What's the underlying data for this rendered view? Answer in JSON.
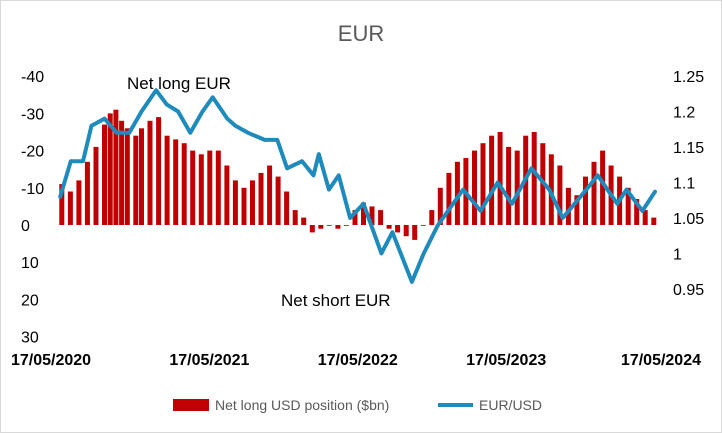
{
  "chart_data": {
    "type": "bar+line",
    "title": "EUR",
    "legend_position": "bottom",
    "grid": false,
    "left_axis": {
      "ticks": [
        -40,
        -30,
        -20,
        -10,
        0,
        10,
        20,
        30
      ],
      "tick_labels": [
        "-40",
        "-30",
        "-20",
        "-10",
        "0",
        "10",
        "20",
        "30"
      ],
      "range": [
        -40,
        30
      ],
      "inverted": true
    },
    "right_axis": {
      "ticks": [
        1.25,
        1.2,
        1.15,
        1.1,
        1.05,
        1,
        0.95
      ],
      "tick_labels": [
        "1.25",
        "1.2",
        "1.15",
        "1.1",
        "1.05",
        "1",
        "0.95"
      ],
      "range": [
        0.95,
        1.25
      ]
    },
    "x_ticks": [
      {
        "date": "2020-05-17",
        "label": "17/05/2020"
      },
      {
        "date": "2021-05-17",
        "label": "17/05/2021"
      },
      {
        "date": "2022-05-17",
        "label": "17/05/2022"
      },
      {
        "date": "2023-05-17",
        "label": "17/05/2023"
      },
      {
        "date": "2024-05-17",
        "label": "17/05/2024"
      }
    ],
    "annotations": {
      "net_long": "Net long EUR",
      "net_short": "Net short EUR"
    },
    "series": [
      {
        "name": "Net long USD position ($bn)",
        "type": "bar",
        "axis": "left",
        "color": "#c00000",
        "points": [
          [
            "2020-05-19",
            -11
          ],
          [
            "2020-06-09",
            -9
          ],
          [
            "2020-06-30",
            -12
          ],
          [
            "2020-07-21",
            -17
          ],
          [
            "2020-08-11",
            -21
          ],
          [
            "2020-09-01",
            -27
          ],
          [
            "2020-09-15",
            -30
          ],
          [
            "2020-09-29",
            -31
          ],
          [
            "2020-10-13",
            -28
          ],
          [
            "2020-10-27",
            -26
          ],
          [
            "2020-11-17",
            -24
          ],
          [
            "2020-12-01",
            -26
          ],
          [
            "2020-12-22",
            -28
          ],
          [
            "2021-01-12",
            -29
          ],
          [
            "2021-02-02",
            -24
          ],
          [
            "2021-02-23",
            -23
          ],
          [
            "2021-03-16",
            -22
          ],
          [
            "2021-04-06",
            -20
          ],
          [
            "2021-04-27",
            -19
          ],
          [
            "2021-05-18",
            -20
          ],
          [
            "2021-06-08",
            -20
          ],
          [
            "2021-06-29",
            -16
          ],
          [
            "2021-07-20",
            -12
          ],
          [
            "2021-08-10",
            -10
          ],
          [
            "2021-08-31",
            -12
          ],
          [
            "2021-09-21",
            -14
          ],
          [
            "2021-10-12",
            -16
          ],
          [
            "2021-11-02",
            -13
          ],
          [
            "2021-11-23",
            -9
          ],
          [
            "2021-12-14",
            -4
          ],
          [
            "2022-01-04",
            -2
          ],
          [
            "2022-01-25",
            2
          ],
          [
            "2022-02-15",
            1
          ],
          [
            "2022-03-08",
            0
          ],
          [
            "2022-03-29",
            1
          ],
          [
            "2022-04-19",
            0
          ],
          [
            "2022-05-10",
            -4
          ],
          [
            "2022-05-31",
            -6
          ],
          [
            "2022-06-21",
            -5
          ],
          [
            "2022-07-12",
            -4
          ],
          [
            "2022-08-02",
            1
          ],
          [
            "2022-08-23",
            2
          ],
          [
            "2022-09-13",
            3
          ],
          [
            "2022-10-04",
            4
          ],
          [
            "2022-10-25",
            0
          ],
          [
            "2022-11-15",
            -4
          ],
          [
            "2022-12-06",
            -10
          ],
          [
            "2022-12-27",
            -14
          ],
          [
            "2023-01-17",
            -17
          ],
          [
            "2023-02-07",
            -18
          ],
          [
            "2023-02-28",
            -20
          ],
          [
            "2023-03-21",
            -22
          ],
          [
            "2023-04-11",
            -24
          ],
          [
            "2023-05-02",
            -25
          ],
          [
            "2023-05-23",
            -21
          ],
          [
            "2023-06-13",
            -20
          ],
          [
            "2023-07-04",
            -24
          ],
          [
            "2023-07-25",
            -25
          ],
          [
            "2023-08-15",
            -22
          ],
          [
            "2023-09-05",
            -19
          ],
          [
            "2023-09-26",
            -16
          ],
          [
            "2023-10-17",
            -10
          ],
          [
            "2023-11-07",
            -8
          ],
          [
            "2023-11-28",
            -13
          ],
          [
            "2023-12-19",
            -17
          ],
          [
            "2024-01-09",
            -20
          ],
          [
            "2024-01-30",
            -16
          ],
          [
            "2024-02-20",
            -13
          ],
          [
            "2024-03-12",
            -10
          ],
          [
            "2024-04-02",
            -7
          ],
          [
            "2024-04-23",
            -4
          ],
          [
            "2024-05-14",
            -2
          ]
        ]
      },
      {
        "name": "EUR/USD",
        "type": "line",
        "axis": "right",
        "color": "#1f8bbd",
        "points": [
          [
            "2020-05-15",
            1.08
          ],
          [
            "2020-06-10",
            1.13
          ],
          [
            "2020-07-10",
            1.13
          ],
          [
            "2020-07-31",
            1.18
          ],
          [
            "2020-09-01",
            1.19
          ],
          [
            "2020-10-01",
            1.17
          ],
          [
            "2020-11-01",
            1.17
          ],
          [
            "2020-12-01",
            1.2
          ],
          [
            "2021-01-06",
            1.23
          ],
          [
            "2021-02-01",
            1.21
          ],
          [
            "2021-03-01",
            1.2
          ],
          [
            "2021-03-31",
            1.17
          ],
          [
            "2021-04-30",
            1.2
          ],
          [
            "2021-05-25",
            1.22
          ],
          [
            "2021-06-30",
            1.19
          ],
          [
            "2021-07-20",
            1.18
          ],
          [
            "2021-08-20",
            1.17
          ],
          [
            "2021-09-30",
            1.16
          ],
          [
            "2021-10-31",
            1.16
          ],
          [
            "2021-11-24",
            1.12
          ],
          [
            "2021-12-31",
            1.13
          ],
          [
            "2022-01-28",
            1.11
          ],
          [
            "2022-02-10",
            1.14
          ],
          [
            "2022-03-07",
            1.09
          ],
          [
            "2022-03-31",
            1.11
          ],
          [
            "2022-04-28",
            1.05
          ],
          [
            "2022-05-31",
            1.07
          ],
          [
            "2022-07-14",
            1.0
          ],
          [
            "2022-08-10",
            1.03
          ],
          [
            "2022-09-27",
            0.96
          ],
          [
            "2022-10-26",
            1.0
          ],
          [
            "2022-11-30",
            1.04
          ],
          [
            "2023-01-31",
            1.09
          ],
          [
            "2023-03-15",
            1.06
          ],
          [
            "2023-04-26",
            1.1
          ],
          [
            "2023-05-31",
            1.07
          ],
          [
            "2023-07-18",
            1.12
          ],
          [
            "2023-08-31",
            1.09
          ],
          [
            "2023-10-03",
            1.05
          ],
          [
            "2023-11-30",
            1.09
          ],
          [
            "2023-12-28",
            1.11
          ],
          [
            "2024-02-14",
            1.07
          ],
          [
            "2024-03-08",
            1.09
          ],
          [
            "2024-04-16",
            1.06
          ],
          [
            "2024-05-17",
            1.087
          ]
        ]
      }
    ]
  }
}
